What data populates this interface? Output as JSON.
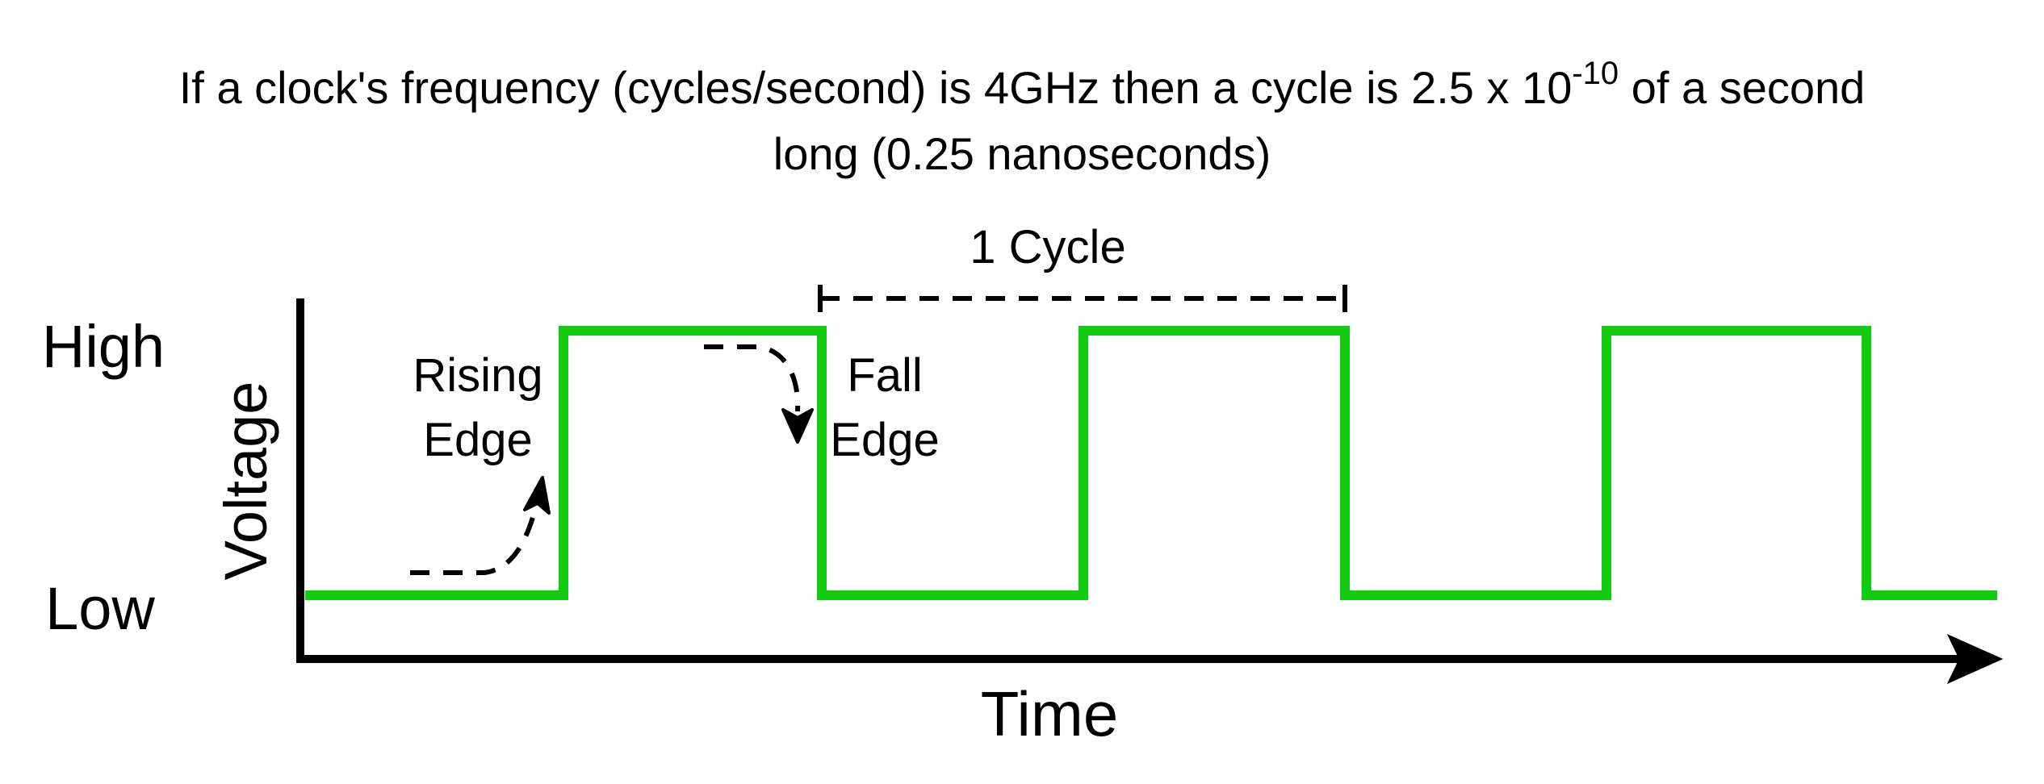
{
  "title": {
    "prefix": "If a clock's frequency (cycles/second) is 4GHz then a cycle is 2.5 x 10",
    "exponent": "-10",
    "suffix": " of a second",
    "line2": "long (0.25 nanoseconds)"
  },
  "axes": {
    "y_label": "Voltage",
    "x_label": "Time",
    "high_label": "High",
    "low_label": "Low"
  },
  "annotations": {
    "rising_edge_line1": "Rising",
    "rising_edge_line2": "Edge",
    "fall_edge_line1": "Fall",
    "fall_edge_line2": "Edge",
    "cycle_label": "1 Cycle"
  },
  "signal": {
    "levels": [
      "Low",
      "High",
      "Low",
      "High",
      "Low",
      "High",
      "Low"
    ],
    "color": "#11cc11"
  },
  "colors": {
    "axis": "#000000",
    "signal": "#11cc11",
    "text": "#000000"
  }
}
